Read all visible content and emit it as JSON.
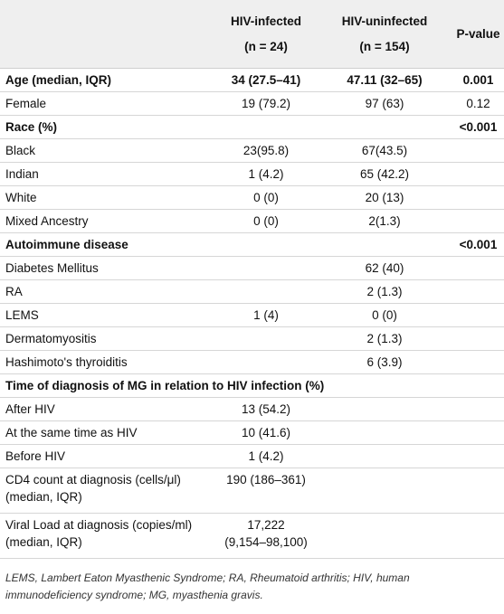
{
  "table": {
    "columns": [
      {
        "title": "HIV-infected",
        "subtitle": "(n = 24)"
      },
      {
        "title": "HIV-uninfected",
        "subtitle": "(n = 154)"
      },
      {
        "title": "P-value"
      }
    ],
    "rows": [
      {
        "bold": true,
        "cells": [
          "Age (median, IQR)",
          "34 (27.5–41)",
          "47.11 (32–65)",
          "0.001"
        ]
      },
      {
        "cells": [
          "Female",
          "19 (79.2)",
          "97 (63)",
          "0.12"
        ]
      },
      {
        "bold": true,
        "cells": [
          "Race (%)",
          null,
          null,
          "<0.001"
        ]
      },
      {
        "cells": [
          "Black",
          "23(95.8)",
          "67(43.5)",
          null
        ]
      },
      {
        "cells": [
          "Indian",
          "1 (4.2)",
          "65 (42.2)",
          null
        ]
      },
      {
        "cells": [
          "White",
          "0 (0)",
          "20 (13)",
          null
        ]
      },
      {
        "cells": [
          "Mixed Ancestry",
          "0 (0)",
          "2(1.3)",
          null
        ]
      },
      {
        "bold": true,
        "cells": [
          "Autoimmune disease",
          null,
          null,
          "<0.001"
        ]
      },
      {
        "cells": [
          "Diabetes Mellitus",
          null,
          "62 (40)",
          null
        ]
      },
      {
        "cells": [
          "RA",
          null,
          "2 (1.3)",
          null
        ]
      },
      {
        "cells": [
          "LEMS",
          "1 (4)",
          "0 (0)",
          null
        ]
      },
      {
        "cells": [
          "Dermatomyositis",
          null,
          "2 (1.3)",
          null
        ]
      },
      {
        "cells": [
          "Hashimoto's thyroiditis",
          null,
          "6 (3.9)",
          null
        ]
      },
      {
        "bold": true,
        "cells": [
          "Time of diagnosis of MG in relation to HIV infection (%)",
          null,
          null,
          null
        ]
      },
      {
        "cells": [
          "After HIV",
          "13 (54.2)",
          null,
          null
        ]
      },
      {
        "cells": [
          "At the same time as HIV",
          "10 (41.6)",
          null,
          null
        ]
      },
      {
        "cells": [
          "Before HIV",
          "1 (4.2)",
          null,
          null
        ]
      },
      {
        "cells": [
          [
            "CD4 count at diagnosis (cells/μl)",
            "(median, IQR)"
          ],
          "190 (186–361)",
          null,
          null
        ]
      },
      {
        "cells": [
          [
            "Viral Load at diagnosis (copies/ml)",
            "(median, IQR)"
          ],
          [
            "17,222",
            "(9,154–98,100)"
          ],
          null,
          null
        ]
      }
    ],
    "footnote": "LEMS, Lambert Eaton Myasthenic Syndrome; RA, Rheumatoid arthritis; HIV, human immunodeficiency syndrome; MG, myasthenia gravis."
  }
}
